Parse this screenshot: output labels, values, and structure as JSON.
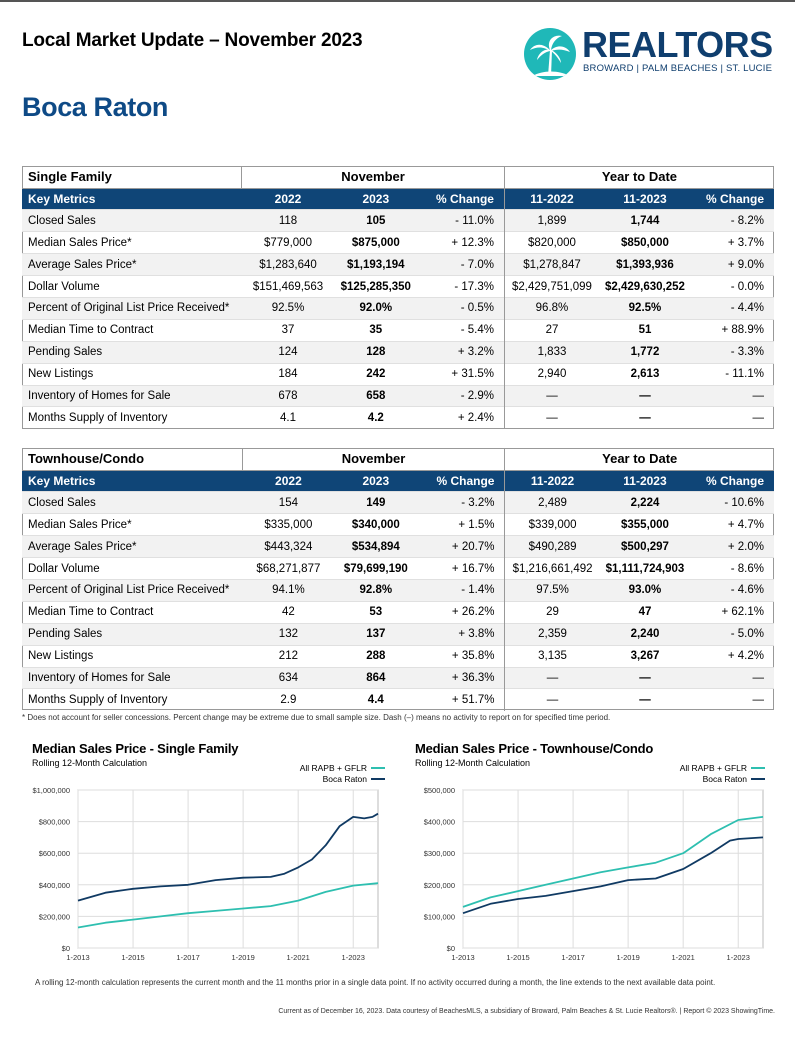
{
  "header": {
    "report_title": "Local Market Update – November 2023",
    "city": "Boca Raton",
    "logo_word": "REALTORS",
    "logo_sub": "BROWARD | PALM BEACHES | ST. LUCIE",
    "colors": {
      "navy": "#0f4577",
      "teal": "#1fb8b8",
      "city_blue": "#0e4a86"
    }
  },
  "tables": [
    {
      "section": "Single Family",
      "group_month": "November",
      "group_ytd": "Year to Date",
      "columns": [
        "Key Metrics",
        "2022",
        "2023",
        "% Change",
        "11-2022",
        "11-2023",
        "% Change"
      ],
      "rows": [
        [
          "Closed Sales",
          "118",
          "105",
          "- 11.0%",
          "1,899",
          "1,744",
          "- 8.2%"
        ],
        [
          "Median Sales Price*",
          "$779,000",
          "$875,000",
          "+ 12.3%",
          "$820,000",
          "$850,000",
          "+ 3.7%"
        ],
        [
          "Average Sales Price*",
          "$1,283,640",
          "$1,193,194",
          "- 7.0%",
          "$1,278,847",
          "$1,393,936",
          "+ 9.0%"
        ],
        [
          "Dollar Volume",
          "$151,469,563",
          "$125,285,350",
          "- 17.3%",
          "$2,429,751,099",
          "$2,429,630,252",
          "- 0.0%"
        ],
        [
          "Percent of Original List Price Received*",
          "92.5%",
          "92.0%",
          "- 0.5%",
          "96.8%",
          "92.5%",
          "- 4.4%"
        ],
        [
          "Median Time to Contract",
          "37",
          "35",
          "- 5.4%",
          "27",
          "51",
          "+ 88.9%"
        ],
        [
          "Pending Sales",
          "124",
          "128",
          "+ 3.2%",
          "1,833",
          "1,772",
          "- 3.3%"
        ],
        [
          "New Listings",
          "184",
          "242",
          "+ 31.5%",
          "2,940",
          "2,613",
          "- 11.1%"
        ],
        [
          "Inventory of Homes for Sale",
          "678",
          "658",
          "- 2.9%",
          "—",
          "—",
          "—"
        ],
        [
          "Months Supply of Inventory",
          "4.1",
          "4.2",
          "+ 2.4%",
          "—",
          "—",
          "—"
        ]
      ]
    },
    {
      "section": "Townhouse/Condo",
      "group_month": "November",
      "group_ytd": "Year to Date",
      "columns": [
        "Key Metrics",
        "2022",
        "2023",
        "% Change",
        "11-2022",
        "11-2023",
        "% Change"
      ],
      "rows": [
        [
          "Closed Sales",
          "154",
          "149",
          "- 3.2%",
          "2,489",
          "2,224",
          "- 10.6%"
        ],
        [
          "Median Sales Price*",
          "$335,000",
          "$340,000",
          "+ 1.5%",
          "$339,000",
          "$355,000",
          "+ 4.7%"
        ],
        [
          "Average Sales Price*",
          "$443,324",
          "$534,894",
          "+ 20.7%",
          "$490,289",
          "$500,297",
          "+ 2.0%"
        ],
        [
          "Dollar Volume",
          "$68,271,877",
          "$79,699,190",
          "+ 16.7%",
          "$1,216,661,492",
          "$1,111,724,903",
          "- 8.6%"
        ],
        [
          "Percent of Original List Price Received*",
          "94.1%",
          "92.8%",
          "- 1.4%",
          "97.5%",
          "93.0%",
          "- 4.6%"
        ],
        [
          "Median Time to Contract",
          "42",
          "53",
          "+ 26.2%",
          "29",
          "47",
          "+ 62.1%"
        ],
        [
          "Pending Sales",
          "132",
          "137",
          "+ 3.8%",
          "2,359",
          "2,240",
          "- 5.0%"
        ],
        [
          "New Listings",
          "212",
          "288",
          "+ 35.8%",
          "3,135",
          "3,267",
          "+ 4.2%"
        ],
        [
          "Inventory of Homes for Sale",
          "634",
          "864",
          "+ 36.3%",
          "—",
          "—",
          "—"
        ],
        [
          "Months Supply of Inventory",
          "2.9",
          "4.4",
          "+ 51.7%",
          "—",
          "—",
          "—"
        ]
      ]
    }
  ],
  "footnote": "* Does not account for seller concessions. Percent change may be extreme due to small sample size. Dash (–) means no activity to report on for specified time period.",
  "chart_data": [
    {
      "type": "line",
      "title": "Median Sales Price - Single Family",
      "subtitle": "Rolling 12-Month Calculation",
      "ylim": [
        0,
        1000000
      ],
      "yticks": [
        "$0",
        "$200,000",
        "$400,000",
        "$600,000",
        "$800,000",
        "$1,000,000"
      ],
      "ytick_values": [
        0,
        200000,
        400000,
        600000,
        800000,
        1000000
      ],
      "xticks": [
        "1-2013",
        "1-2015",
        "1-2017",
        "1-2019",
        "1-2021",
        "1-2023"
      ],
      "xtick_values": [
        2013,
        2015,
        2017,
        2019,
        2021,
        2023
      ],
      "xlim": [
        2013,
        2023.9
      ],
      "grid": true,
      "legend": "top-right",
      "series": [
        {
          "name": "All RAPB + GFLR",
          "color": "#2ebfb0",
          "x": [
            2013,
            2014,
            2015,
            2016,
            2017,
            2018,
            2019,
            2020,
            2021,
            2022,
            2023,
            2023.9
          ],
          "values": [
            130000,
            160000,
            180000,
            200000,
            220000,
            235000,
            250000,
            265000,
            300000,
            355000,
            395000,
            410000
          ]
        },
        {
          "name": "Boca Raton",
          "color": "#103a63",
          "x": [
            2013,
            2014,
            2015,
            2016,
            2017,
            2018,
            2019,
            2020,
            2020.5,
            2021,
            2021.5,
            2022,
            2022.5,
            2023,
            2023.4,
            2023.7,
            2023.9
          ],
          "values": [
            300000,
            350000,
            375000,
            390000,
            400000,
            430000,
            445000,
            450000,
            470000,
            510000,
            560000,
            650000,
            770000,
            830000,
            820000,
            830000,
            850000
          ]
        }
      ]
    },
    {
      "type": "line",
      "title": "Median Sales Price - Townhouse/Condo",
      "subtitle": "Rolling 12-Month Calculation",
      "ylim": [
        0,
        500000
      ],
      "yticks": [
        "$0",
        "$100,000",
        "$200,000",
        "$300,000",
        "$400,000",
        "$500,000"
      ],
      "ytick_values": [
        0,
        100000,
        200000,
        300000,
        400000,
        500000
      ],
      "xticks": [
        "1-2013",
        "1-2015",
        "1-2017",
        "1-2019",
        "1-2021",
        "1-2023"
      ],
      "xtick_values": [
        2013,
        2015,
        2017,
        2019,
        2021,
        2023
      ],
      "xlim": [
        2013,
        2023.9
      ],
      "grid": true,
      "legend": "top-right",
      "series": [
        {
          "name": "All RAPB + GFLR",
          "color": "#2ebfb0",
          "x": [
            2013,
            2014,
            2015,
            2016,
            2017,
            2018,
            2019,
            2020,
            2021,
            2022,
            2023,
            2023.9
          ],
          "values": [
            130000,
            160000,
            180000,
            200000,
            220000,
            240000,
            255000,
            270000,
            300000,
            360000,
            405000,
            415000
          ]
        },
        {
          "name": "Boca Raton",
          "color": "#103a63",
          "x": [
            2013,
            2014,
            2015,
            2016,
            2017,
            2018,
            2019,
            2020,
            2021,
            2022,
            2022.7,
            2023,
            2023.9
          ],
          "values": [
            110000,
            140000,
            155000,
            165000,
            180000,
            195000,
            215000,
            220000,
            250000,
            300000,
            340000,
            345000,
            350000
          ]
        }
      ]
    }
  ],
  "bottom_note": "A rolling 12-month calculation represents the current month and the 11 months prior in a single data point. If no activity occurred during a month, the line extends to the next available data point.",
  "credits": "Current as of December 16, 2023. Data courtesy of BeachesMLS, a subsidiary of Broward, Palm Beaches & St. Lucie Realtors®. | Report © 2023 ShowingTime."
}
